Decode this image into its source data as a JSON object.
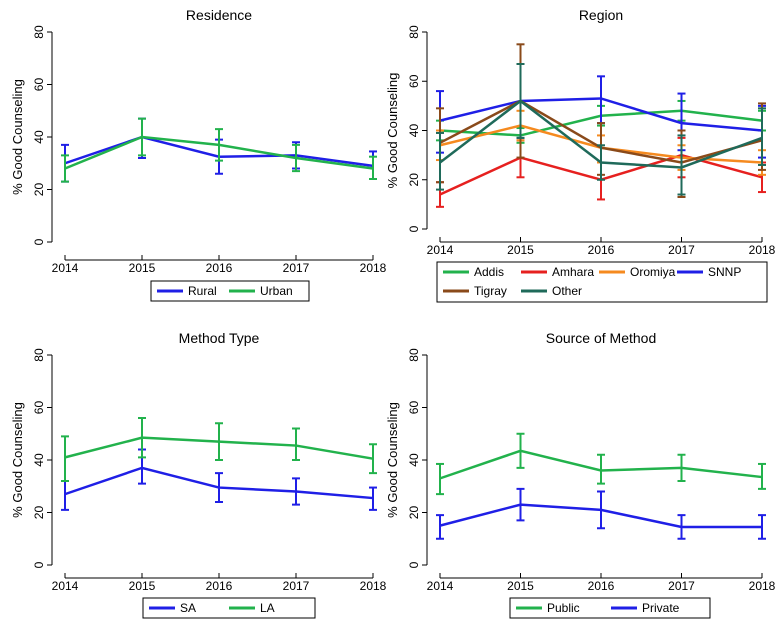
{
  "chart_data": [
    {
      "type": "line",
      "title": "Residence",
      "xlabel": "",
      "ylabel": "% Good Counseling",
      "x": [
        "2014",
        "2015",
        "2016",
        "2017",
        "2018"
      ],
      "yticks": [
        "0",
        "20",
        "40",
        "60",
        "80"
      ],
      "ylim": [
        0,
        80
      ],
      "error_bars": true,
      "legend_position": "bottom",
      "series": [
        {
          "name": "Rural",
          "color": "#1f1fe6",
          "values": [
            30,
            40,
            32.5,
            33,
            29
          ],
          "lower": [
            23,
            32,
            26,
            28,
            24
          ],
          "upper": [
            37,
            47,
            39,
            38,
            34.5
          ]
        },
        {
          "name": "Urban",
          "color": "#22b24c",
          "values": [
            28,
            40,
            37,
            32,
            28
          ],
          "lower": [
            23,
            33,
            31,
            27,
            24
          ],
          "upper": [
            33,
            47,
            43,
            37,
            32.5
          ]
        }
      ]
    },
    {
      "type": "line",
      "title": "Region",
      "xlabel": "",
      "ylabel": "% Good Counseling",
      "x": [
        "2014",
        "2015",
        "2016",
        "2017",
        "2018"
      ],
      "yticks": [
        "0",
        "20",
        "40",
        "60",
        "80"
      ],
      "ylim": [
        0,
        80
      ],
      "error_bars": true,
      "legend_position": "bottom",
      "series": [
        {
          "name": "Addis",
          "color": "#22b24c",
          "values": [
            40,
            38,
            46,
            48,
            44
          ],
          "lower": [
            36,
            35,
            42,
            44,
            40
          ],
          "upper": [
            44,
            41,
            50,
            52,
            48
          ]
        },
        {
          "name": "Amhara",
          "color": "#e6201f",
          "values": [
            14,
            29,
            20,
            30,
            21
          ],
          "lower": [
            9,
            21,
            12,
            21,
            15
          ],
          "upper": [
            19,
            36,
            27,
            37,
            27
          ]
        },
        {
          "name": "Oromiya",
          "color": "#f58a1f",
          "values": [
            34,
            42,
            33,
            29,
            27
          ],
          "lower": [
            28,
            36,
            27,
            24,
            22
          ],
          "upper": [
            40,
            48,
            38,
            34,
            32
          ]
        },
        {
          "name": "SNNP",
          "color": "#1f1fe6",
          "values": [
            44,
            52,
            53,
            43,
            40
          ],
          "lower": [
            31,
            37,
            43,
            32,
            29
          ],
          "upper": [
            56,
            67,
            62,
            55,
            50
          ]
        },
        {
          "name": "Tigray",
          "color": "#8a4a1a",
          "values": [
            35,
            52,
            33,
            27,
            36
          ],
          "lower": [
            19,
            29,
            22,
            13,
            24
          ],
          "upper": [
            49,
            75,
            43,
            40,
            51
          ]
        },
        {
          "name": "Other",
          "color": "#1f6a5a",
          "values": [
            27,
            52,
            27,
            25,
            37
          ],
          "lower": [
            16,
            37,
            20,
            14,
            26
          ],
          "upper": [
            39,
            67,
            34,
            38,
            49
          ]
        }
      ]
    },
    {
      "type": "line",
      "title": "Method Type",
      "xlabel": "",
      "ylabel": "% Good Counseling",
      "x": [
        "2014",
        "2015",
        "2016",
        "2017",
        "2018"
      ],
      "yticks": [
        "0",
        "20",
        "40",
        "60",
        "80"
      ],
      "ylim": [
        0,
        80
      ],
      "error_bars": true,
      "legend_position": "bottom",
      "series": [
        {
          "name": "SA",
          "color": "#1f1fe6",
          "values": [
            27,
            37,
            29.5,
            28,
            25.5
          ],
          "lower": [
            21,
            31,
            24,
            23,
            21
          ],
          "upper": [
            32,
            44,
            35,
            33,
            29.5
          ]
        },
        {
          "name": "LA",
          "color": "#22b24c",
          "values": [
            41,
            48.5,
            47,
            45.5,
            40.5
          ],
          "lower": [
            32,
            41,
            40,
            40,
            35
          ],
          "upper": [
            49,
            56,
            54,
            52,
            46
          ]
        }
      ]
    },
    {
      "type": "line",
      "title": "Source of Method",
      "xlabel": "",
      "ylabel": "% Good Counseling",
      "x": [
        "2014",
        "2015",
        "2016",
        "2017",
        "2018"
      ],
      "yticks": [
        "0",
        "20",
        "40",
        "60",
        "80"
      ],
      "ylim": [
        0,
        80
      ],
      "error_bars": true,
      "legend_position": "bottom",
      "series": [
        {
          "name": "Public",
          "color": "#22b24c",
          "values": [
            33,
            43.5,
            36,
            37,
            33.5
          ],
          "lower": [
            27,
            37,
            31,
            32,
            29
          ],
          "upper": [
            38.5,
            50,
            42,
            42,
            38.5
          ]
        },
        {
          "name": "Private",
          "color": "#1f1fe6",
          "values": [
            15,
            23,
            21,
            14.5,
            14.5
          ],
          "lower": [
            10,
            17,
            14,
            10,
            10
          ],
          "upper": [
            19,
            29,
            28,
            19,
            19
          ]
        }
      ]
    }
  ]
}
